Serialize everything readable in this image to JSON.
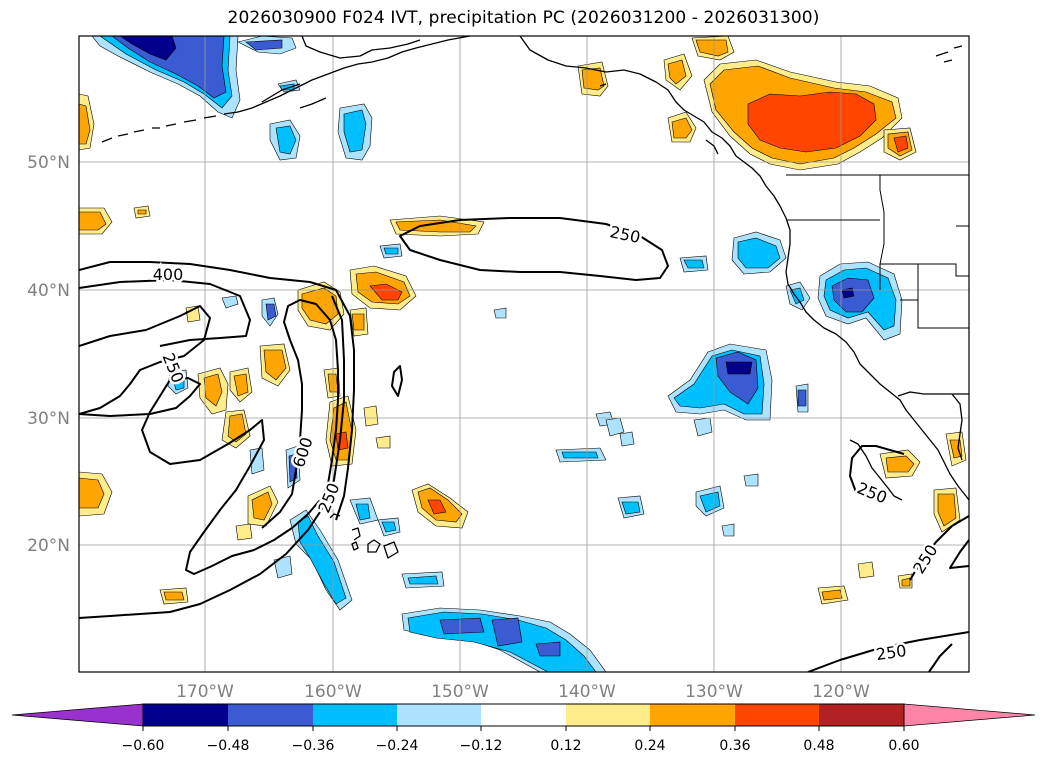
{
  "title": "2026030900 F024 IVT, precipitation PC (2026031200 - 2026031300)",
  "map": {
    "lat_labels": [
      "50°N",
      "40°N",
      "30°N",
      "20°N"
    ],
    "lon_labels": [
      "170°W",
      "160°W",
      "150°W",
      "140°W",
      "130°W",
      "120°W"
    ],
    "contour_labels": [
      "250",
      "400",
      "250",
      "600",
      "250",
      "250",
      "250",
      "250"
    ],
    "axis_label_color": "#808080"
  },
  "colorbar": {
    "tick_labels": [
      "−0.60",
      "−0.48",
      "−0.36",
      "−0.24",
      "−0.12",
      "0.12",
      "0.24",
      "0.36",
      "0.48",
      "0.60"
    ],
    "colors": [
      "#9932cc",
      "#00008b",
      "#3a5bd1",
      "#00bfff",
      "#aee3ff",
      "#ffffff",
      "#ffec8b",
      "#ffa500",
      "#ff4500",
      "#b22222",
      "#ff85a8"
    ]
  }
}
